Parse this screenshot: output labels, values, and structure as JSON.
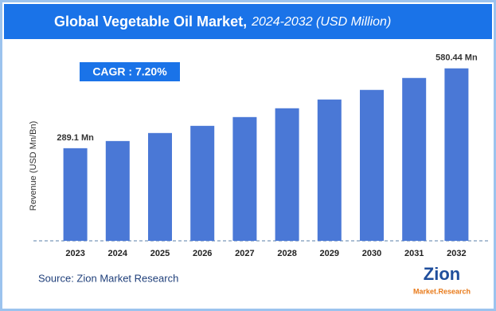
{
  "chart_data": {
    "type": "bar",
    "title": "Global Vegetable Oil Market,",
    "subtitle": "2024-2032 (USD Million)",
    "y_axis_label": "Revenue (USD Mn/Bn)",
    "annotation": "CAGR : 7.20%",
    "source": "Source: Zion Market Research",
    "logo": "Zion",
    "logo_sub": "Market.Research",
    "categories": [
      "2023",
      "2024",
      "2025",
      "2026",
      "2027",
      "2028",
      "2029",
      "2030",
      "2031",
      "2032"
    ],
    "values": [
      289.1,
      315.3,
      344.5,
      370.7,
      402.7,
      434.8,
      466.8,
      501.8,
      545.4,
      580.44
    ],
    "value_labels": [
      "289.1 Mn",
      null,
      null,
      null,
      null,
      null,
      null,
      null,
      null,
      "580.44 Mn"
    ],
    "color": "#4a78d6",
    "ylim": [
      -48.8,
      600
    ]
  }
}
